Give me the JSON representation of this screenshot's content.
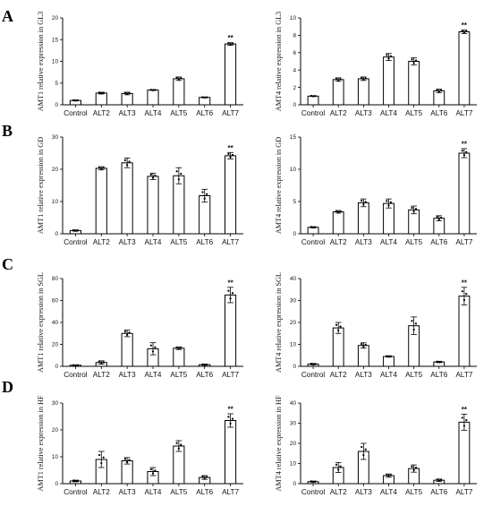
{
  "panels": [
    "A",
    "B",
    "C",
    "D"
  ],
  "chart_data": [
    {
      "type": "bar",
      "panel": "A",
      "categories": [
        "Control",
        "ALT2",
        "ALT3",
        "ALT4",
        "ALT5",
        "ALT6",
        "ALT7"
      ],
      "values": [
        1.0,
        2.7,
        2.6,
        3.4,
        6.0,
        1.7,
        14.0
      ],
      "errors": [
        0.1,
        0.2,
        0.3,
        0.1,
        0.4,
        0.1,
        0.3
      ],
      "significance": [
        "",
        "",
        "",
        "",
        "",
        "",
        "**"
      ],
      "ylabel": "AMT1 relative expression in GL3",
      "ylim": [
        0,
        20
      ],
      "yticks": [
        0,
        5,
        10,
        15,
        20
      ]
    },
    {
      "type": "bar",
      "panel": "A",
      "categories": [
        "Control",
        "ALT2",
        "ALT3",
        "ALT4",
        "ALT5",
        "ALT6",
        "ALT7"
      ],
      "values": [
        1.0,
        2.9,
        3.0,
        5.5,
        5.0,
        1.6,
        8.4
      ],
      "errors": [
        0.05,
        0.2,
        0.2,
        0.4,
        0.4,
        0.2,
        0.2
      ],
      "significance": [
        "",
        "",
        "",
        "",
        "",
        "",
        "**"
      ],
      "ylabel": "AMT4 relative expression in GL3",
      "ylim": [
        0,
        10
      ],
      "yticks": [
        0,
        2,
        4,
        6,
        8,
        10
      ]
    },
    {
      "type": "bar",
      "panel": "B",
      "categories": [
        "Control",
        "ALT2",
        "ALT3",
        "ALT4",
        "ALT5",
        "ALT6",
        "ALT7"
      ],
      "values": [
        1.0,
        20.3,
        22.0,
        17.8,
        18.0,
        11.8,
        24.2
      ],
      "errors": [
        0.2,
        0.5,
        1.5,
        1.0,
        2.5,
        2.0,
        1.0
      ],
      "significance": [
        "",
        "",
        "",
        "",
        "",
        "",
        "**"
      ],
      "ylabel": "AMT1 relative expression in GD",
      "ylim": [
        0,
        30
      ],
      "yticks": [
        0,
        10,
        20,
        30
      ]
    },
    {
      "type": "bar",
      "panel": "B",
      "categories": [
        "Control",
        "ALT2",
        "ALT3",
        "ALT4",
        "ALT5",
        "ALT6",
        "ALT7"
      ],
      "values": [
        1.0,
        3.4,
        4.8,
        4.7,
        3.7,
        2.4,
        12.5
      ],
      "errors": [
        0.1,
        0.2,
        0.6,
        0.7,
        0.6,
        0.4,
        0.7
      ],
      "significance": [
        "",
        "",
        "",
        "",
        "",
        "",
        "**"
      ],
      "ylabel": "AMT4 relative expression in GD",
      "ylim": [
        0,
        15
      ],
      "yticks": [
        0,
        5,
        10,
        15
      ]
    },
    {
      "type": "bar",
      "panel": "C",
      "categories": [
        "Control",
        "ALT2",
        "ALT3",
        "ALT4",
        "ALT5",
        "ALT6",
        "ALT7"
      ],
      "values": [
        1.0,
        3.5,
        30.0,
        16.0,
        16.5,
        1.5,
        65.0
      ],
      "errors": [
        0.3,
        1.5,
        3.0,
        5.5,
        1.2,
        0.5,
        7.0
      ],
      "significance": [
        "",
        "",
        "",
        "",
        "",
        "",
        "**"
      ],
      "ylabel": "AMT1 relative expression in SGL",
      "ylim": [
        0,
        80
      ],
      "yticks": [
        0,
        20,
        40,
        60,
        80
      ]
    },
    {
      "type": "bar",
      "panel": "C",
      "categories": [
        "Control",
        "ALT2",
        "ALT3",
        "ALT4",
        "ALT5",
        "ALT6",
        "ALT7"
      ],
      "values": [
        1.0,
        17.5,
        9.5,
        4.5,
        18.5,
        2.0,
        32.0
      ],
      "errors": [
        0.3,
        2.5,
        1.2,
        0.3,
        4.0,
        0.3,
        4.0
      ],
      "significance": [
        "",
        "",
        "",
        "",
        "",
        "",
        "**"
      ],
      "ylabel": "AMT4 relative expression in SGL",
      "ylim": [
        0,
        40
      ],
      "yticks": [
        0,
        10,
        20,
        30,
        40
      ]
    },
    {
      "type": "bar",
      "panel": "D",
      "categories": [
        "Control",
        "ALT2",
        "ALT3",
        "ALT4",
        "ALT5",
        "ALT6",
        "ALT7"
      ],
      "values": [
        1.0,
        9.0,
        8.5,
        4.5,
        14.0,
        2.3,
        23.5
      ],
      "errors": [
        0.3,
        3.0,
        1.2,
        1.5,
        2.0,
        0.7,
        2.5
      ],
      "significance": [
        "",
        "",
        "",
        "",
        "",
        "",
        "**"
      ],
      "ylabel": "AMT1 relative expression in HF",
      "ylim": [
        0,
        30
      ],
      "yticks": [
        0,
        10,
        20,
        30
      ]
    },
    {
      "type": "bar",
      "panel": "D",
      "categories": [
        "Control",
        "ALT2",
        "ALT3",
        "ALT4",
        "ALT5",
        "ALT6",
        "ALT7"
      ],
      "values": [
        1.0,
        8.0,
        16.0,
        4.0,
        7.5,
        1.7,
        30.5
      ],
      "errors": [
        0.3,
        2.5,
        4.0,
        0.8,
        1.8,
        0.6,
        4.0
      ],
      "significance": [
        "",
        "",
        "",
        "",
        "",
        "",
        "**"
      ],
      "ylabel": "AMT4 relative expression in HF",
      "ylim": [
        0,
        40
      ],
      "yticks": [
        0,
        10,
        20,
        30,
        40
      ]
    }
  ]
}
